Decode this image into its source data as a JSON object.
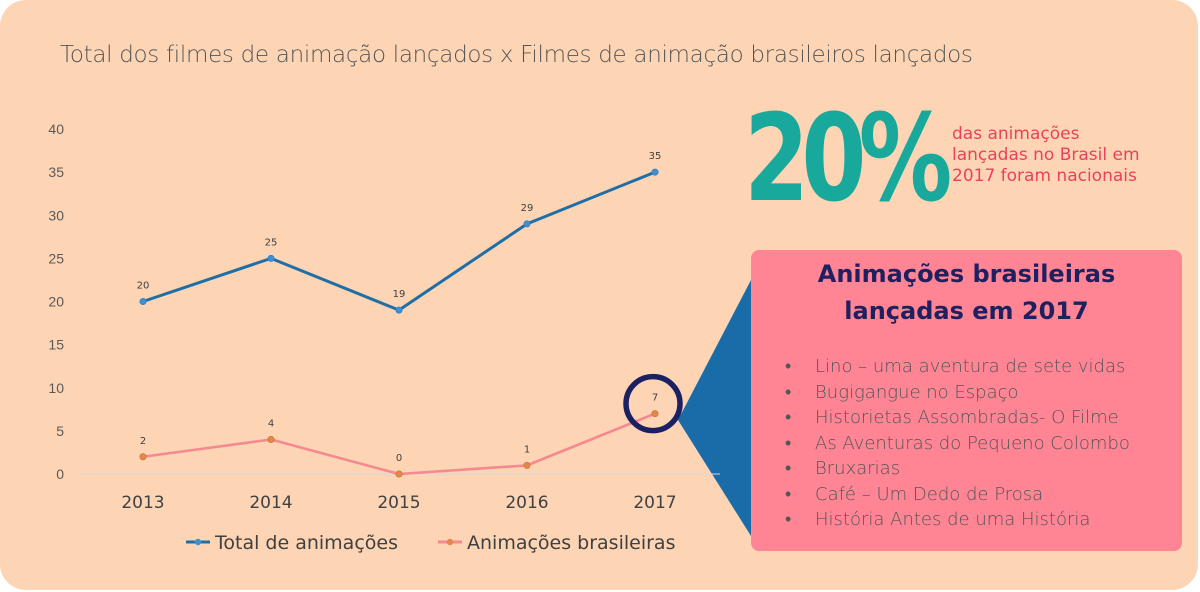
{
  "chart_data": {
    "type": "line",
    "title": "Total dos filmes de animação lançados x Filmes de animação brasileiros lançados",
    "categories": [
      "2013",
      "2014",
      "2015",
      "2016",
      "2017"
    ],
    "series": [
      {
        "name": "Total de animações",
        "values": [
          20,
          25,
          19,
          29,
          35
        ],
        "color": "#1f6ea6"
      },
      {
        "name": "Animações brasileiras",
        "values": [
          2,
          4,
          0,
          1,
          7
        ],
        "color": "#f4898f"
      }
    ],
    "ylim": [
      0,
      40
    ],
    "yticks": [
      "0",
      "5",
      "10",
      "15",
      "20",
      "25",
      "30",
      "35",
      "40"
    ],
    "grid": false,
    "legend": "bottom",
    "highlight": {
      "series": "Animações brasileiras",
      "category": "2017",
      "color": "#1b2062"
    },
    "marker_color": "#e3874a"
  },
  "callout": {
    "big_value": "20%",
    "big_value_color": "#19a99c",
    "caption": "das animações lançadas no Brasil em 2017 foram nacionais",
    "caption_color": "#e9425a"
  },
  "panel": {
    "title_line1": "Animações brasileiras",
    "title_line2": "lançadas em 2017",
    "background": "#ff8595",
    "connector_color": "#1a6ca8",
    "films": [
      "Lino – uma aventura de sete vidas",
      "Bugigangue  no Espaço",
      "Historietas  Assombradas-  O Filme",
      "As Aventuras do Pequeno Colombo",
      "Bruxarias",
      "Café – Um Dedo de Prosa",
      "História  Antes de uma História"
    ]
  }
}
